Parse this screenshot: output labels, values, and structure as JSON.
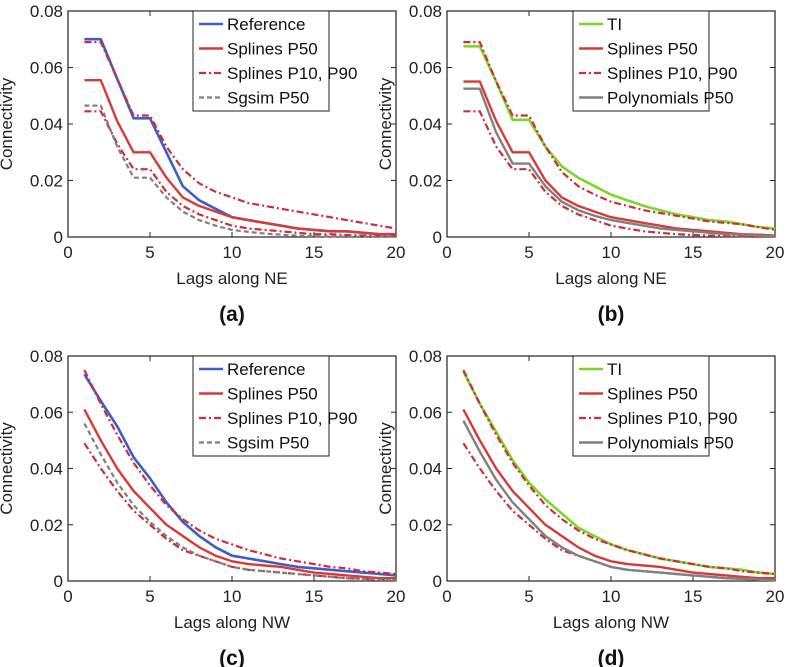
{
  "chart_data": [
    {
      "type": "line",
      "panel_label": "(a)",
      "xlabel": "Lags along NE",
      "ylabel": "Connectivity",
      "xlim": [
        0,
        20
      ],
      "ylim": [
        0,
        0.08
      ],
      "xticks": [
        "0",
        "5",
        "10",
        "15",
        "20"
      ],
      "yticks": [
        "0",
        "0.02",
        "0.04",
        "0.06",
        "0.08"
      ],
      "legend_position": "top-right",
      "x": [
        1,
        2,
        3,
        4,
        5,
        6,
        7,
        8,
        9,
        10,
        11,
        12,
        13,
        14,
        15,
        16,
        17,
        18,
        19,
        20
      ],
      "series": [
        {
          "name": "Reference",
          "style": "reference",
          "values": [
            0.07,
            0.07,
            0.056,
            0.042,
            0.042,
            0.03,
            0.018,
            0.013,
            0.01,
            0.007,
            0.006,
            0.005,
            0.004,
            0.003,
            0.0025,
            0.002,
            0.002,
            0.0015,
            0.001,
            0.001
          ]
        },
        {
          "name": "Splines P50",
          "style": "p50",
          "values": [
            0.0555,
            0.0555,
            0.041,
            0.03,
            0.03,
            0.021,
            0.014,
            0.011,
            0.009,
            0.007,
            0.006,
            0.005,
            0.004,
            0.003,
            0.0025,
            0.002,
            0.002,
            0.0015,
            0.001,
            0.001
          ]
        },
        {
          "name": "Splines P10, P90",
          "style": "p1090",
          "values": [
            0.069,
            0.069,
            0.056,
            0.043,
            0.043,
            0.032,
            0.024,
            0.019,
            0.016,
            0.014,
            0.012,
            0.011,
            0.01,
            0.009,
            0.008,
            0.007,
            0.006,
            0.005,
            0.004,
            0.003
          ]
        },
        {
          "name": "",
          "style": "p1090",
          "values": [
            0.0445,
            0.0445,
            0.033,
            0.024,
            0.024,
            0.016,
            0.011,
            0.008,
            0.006,
            0.004,
            0.003,
            0.0025,
            0.002,
            0.0015,
            0.001,
            0.001,
            0.0007,
            0.0005,
            0.0003,
            0.0002
          ]
        },
        {
          "name": "Sgsim P50",
          "style": "gray-dashed",
          "values": [
            0.0465,
            0.0465,
            0.032,
            0.021,
            0.021,
            0.014,
            0.009,
            0.006,
            0.004,
            0.0025,
            0.0018,
            0.0012,
            0.0008,
            0.0005,
            0.0003,
            0.0002,
            0.0001,
            0.0001,
            0.0001,
            0.0001
          ]
        }
      ]
    },
    {
      "type": "line",
      "panel_label": "(b)",
      "xlabel": "Lags along NE",
      "ylabel": "Connectivity",
      "xlim": [
        0,
        20
      ],
      "ylim": [
        0,
        0.08
      ],
      "xticks": [
        "0",
        "5",
        "10",
        "15",
        "20"
      ],
      "yticks": [
        "0",
        "0.02",
        "0.04",
        "0.06",
        "0.08"
      ],
      "legend_position": "top-right",
      "x": [
        1,
        2,
        3,
        4,
        5,
        6,
        7,
        8,
        9,
        10,
        11,
        12,
        13,
        14,
        15,
        16,
        17,
        18,
        19,
        20
      ],
      "series": [
        {
          "name": "TI",
          "style": "ti",
          "values": [
            0.0675,
            0.0675,
            0.055,
            0.0415,
            0.0415,
            0.032,
            0.025,
            0.021,
            0.018,
            0.015,
            0.013,
            0.011,
            0.0095,
            0.008,
            0.007,
            0.006,
            0.0055,
            0.0045,
            0.0035,
            0.003
          ]
        },
        {
          "name": "Splines P50",
          "style": "p50",
          "values": [
            0.055,
            0.055,
            0.041,
            0.03,
            0.03,
            0.02,
            0.014,
            0.011,
            0.009,
            0.007,
            0.006,
            0.005,
            0.004,
            0.003,
            0.0025,
            0.002,
            0.0015,
            0.001,
            0.0008,
            0.0005
          ]
        },
        {
          "name": "Splines P10, P90",
          "style": "p1090",
          "values": [
            0.069,
            0.069,
            0.055,
            0.043,
            0.043,
            0.032,
            0.023,
            0.018,
            0.015,
            0.0125,
            0.011,
            0.0095,
            0.0085,
            0.0075,
            0.0065,
            0.0055,
            0.005,
            0.0045,
            0.0035,
            0.0025
          ]
        },
        {
          "name": "",
          "style": "p1090",
          "values": [
            0.0445,
            0.0445,
            0.032,
            0.024,
            0.024,
            0.016,
            0.011,
            0.008,
            0.006,
            0.004,
            0.003,
            0.002,
            0.0015,
            0.001,
            0.0007,
            0.0005,
            0.0003,
            0.0002,
            0.0001,
            0.0001
          ]
        },
        {
          "name": "Polynomials P50",
          "style": "gray-solid",
          "values": [
            0.0525,
            0.0525,
            0.037,
            0.026,
            0.026,
            0.018,
            0.0125,
            0.0095,
            0.0075,
            0.006,
            0.005,
            0.004,
            0.003,
            0.0025,
            0.002,
            0.0015,
            0.001,
            0.0008,
            0.0005,
            0.0003
          ]
        }
      ]
    },
    {
      "type": "line",
      "panel_label": "(c)",
      "xlabel": "Lags along NW",
      "ylabel": "Connectivity",
      "xlim": [
        0,
        20
      ],
      "ylim": [
        0,
        0.08
      ],
      "xticks": [
        "0",
        "5",
        "10",
        "15",
        "20"
      ],
      "yticks": [
        "0",
        "0.02",
        "0.04",
        "0.06",
        "0.08"
      ],
      "legend_position": "top-right",
      "x": [
        1,
        2,
        3,
        4,
        5,
        6,
        7,
        8,
        9,
        10,
        11,
        12,
        13,
        14,
        15,
        16,
        17,
        18,
        19,
        20
      ],
      "series": [
        {
          "name": "Reference",
          "style": "reference",
          "values": [
            0.0735,
            0.064,
            0.055,
            0.044,
            0.0365,
            0.028,
            0.021,
            0.016,
            0.012,
            0.009,
            0.008,
            0.007,
            0.006,
            0.005,
            0.0045,
            0.004,
            0.0035,
            0.003,
            0.0025,
            0.002
          ]
        },
        {
          "name": "Splines P50",
          "style": "p50",
          "values": [
            0.061,
            0.05,
            0.04,
            0.032,
            0.026,
            0.02,
            0.016,
            0.012,
            0.009,
            0.007,
            0.006,
            0.0055,
            0.005,
            0.004,
            0.003,
            0.0025,
            0.002,
            0.0015,
            0.001,
            0.001
          ]
        },
        {
          "name": "Splines P10, P90",
          "style": "p1090",
          "values": [
            0.075,
            0.063,
            0.052,
            0.042,
            0.034,
            0.027,
            0.022,
            0.018,
            0.015,
            0.013,
            0.011,
            0.0095,
            0.008,
            0.007,
            0.006,
            0.005,
            0.0045,
            0.0035,
            0.003,
            0.0025
          ]
        },
        {
          "name": "",
          "style": "p1090",
          "values": [
            0.049,
            0.04,
            0.032,
            0.025,
            0.02,
            0.015,
            0.011,
            0.009,
            0.007,
            0.005,
            0.004,
            0.0035,
            0.003,
            0.0025,
            0.002,
            0.0015,
            0.001,
            0.0008,
            0.0005,
            0.0003
          ]
        },
        {
          "name": "Sgsim P50",
          "style": "gray-dashed",
          "values": [
            0.056,
            0.045,
            0.035,
            0.027,
            0.021,
            0.016,
            0.012,
            0.009,
            0.007,
            0.005,
            0.004,
            0.0035,
            0.003,
            0.0025,
            0.002,
            0.0015,
            0.001,
            0.0008,
            0.0005,
            0.0003
          ]
        }
      ]
    },
    {
      "type": "line",
      "panel_label": "(d)",
      "xlabel": "Lags along NW",
      "ylabel": "Connectivity",
      "xlim": [
        0,
        20
      ],
      "ylim": [
        0,
        0.08
      ],
      "xticks": [
        "0",
        "5",
        "10",
        "15",
        "20"
      ],
      "yticks": [
        "0",
        "0.02",
        "0.04",
        "0.06",
        "0.08"
      ],
      "legend_position": "top-right",
      "x": [
        1,
        2,
        3,
        4,
        5,
        6,
        7,
        8,
        9,
        10,
        11,
        12,
        13,
        14,
        15,
        16,
        17,
        18,
        19,
        20
      ],
      "series": [
        {
          "name": "TI",
          "style": "ti",
          "values": [
            0.0745,
            0.063,
            0.053,
            0.043,
            0.035,
            0.029,
            0.024,
            0.019,
            0.016,
            0.013,
            0.011,
            0.0095,
            0.008,
            0.007,
            0.006,
            0.005,
            0.0045,
            0.004,
            0.003,
            0.0025
          ]
        },
        {
          "name": "Splines P50",
          "style": "p50",
          "values": [
            0.061,
            0.05,
            0.04,
            0.032,
            0.026,
            0.02,
            0.016,
            0.012,
            0.009,
            0.007,
            0.006,
            0.0055,
            0.005,
            0.004,
            0.003,
            0.0025,
            0.002,
            0.0015,
            0.001,
            0.001
          ]
        },
        {
          "name": "Splines P10, P90",
          "style": "p1090",
          "values": [
            0.075,
            0.063,
            0.052,
            0.042,
            0.034,
            0.027,
            0.022,
            0.018,
            0.015,
            0.013,
            0.011,
            0.0095,
            0.008,
            0.007,
            0.006,
            0.005,
            0.0045,
            0.0035,
            0.003,
            0.0025
          ]
        },
        {
          "name": "",
          "style": "p1090",
          "values": [
            0.049,
            0.04,
            0.032,
            0.025,
            0.02,
            0.015,
            0.011,
            0.009,
            0.007,
            0.005,
            0.004,
            0.0035,
            0.003,
            0.0025,
            0.002,
            0.0015,
            0.001,
            0.0008,
            0.0005,
            0.0003
          ]
        },
        {
          "name": "Polynomials P50",
          "style": "gray-solid",
          "values": [
            0.057,
            0.046,
            0.036,
            0.028,
            0.022,
            0.016,
            0.012,
            0.009,
            0.007,
            0.005,
            0.004,
            0.0035,
            0.003,
            0.0025,
            0.002,
            0.0015,
            0.001,
            0.0008,
            0.0005,
            0.0003
          ]
        }
      ]
    }
  ],
  "colors": {
    "reference": "#3b5fc9",
    "ti": "#7fd624",
    "p50": "#d93a34",
    "p1090": "#d02c3a",
    "gray": "#808080",
    "axis": "#222222"
  }
}
